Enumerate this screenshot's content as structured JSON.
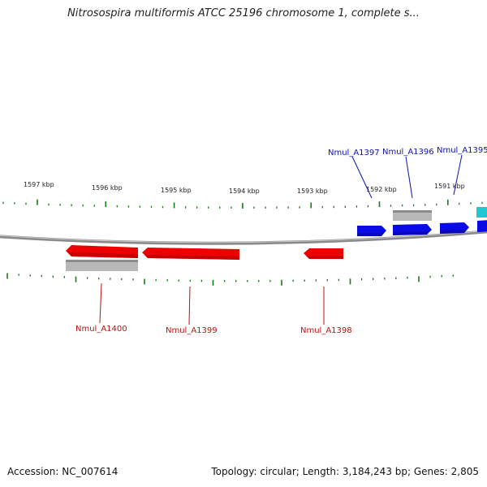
{
  "title": "Nitrosospira multiformis ATCC 25196 chromosome 1, complete s...",
  "footer": {
    "accession": "Accession: NC_007614",
    "summary": "Topology: circular; Length: 3,184,243 bp; Genes: 2,805"
  },
  "colors": {
    "forward_cds": "#0a0ae6",
    "reverse_cds": "#ee0000",
    "gene": "#b8b8b8",
    "rna": "#20c8d0",
    "tick": "#1a7a1a",
    "backbone": "#8a8a8a",
    "forward_label": "#1010b0",
    "reverse_label": "#c01010"
  },
  "scale_labels": [
    "1597 kbp",
    "1596 kbp",
    "1595 kbp",
    "1594 kbp",
    "1593 kbp",
    "1592 kbp",
    "1591 kbp"
  ],
  "gene_labels": {
    "forward": [
      "Nmul_A1397",
      "Nmul_A1396",
      "Nmul_A1395"
    ],
    "reverse": [
      "Nmul_A1400",
      "Nmul_A1399",
      "Nmul_A1398"
    ]
  }
}
